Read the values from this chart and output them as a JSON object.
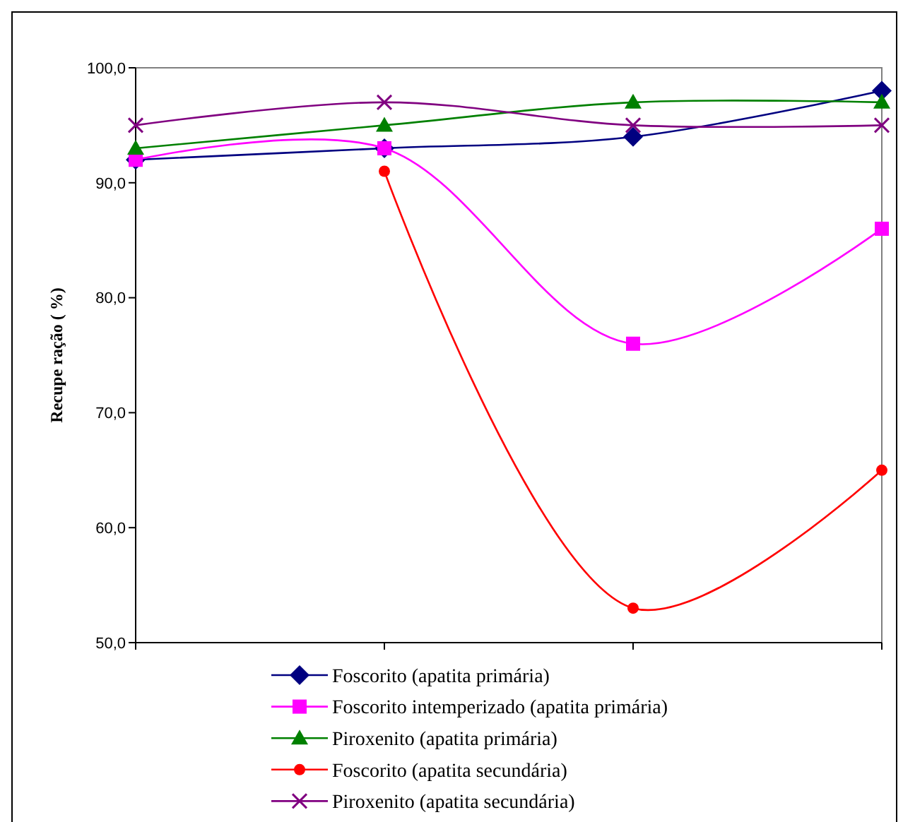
{
  "chart_data": {
    "type": "line",
    "ylabel": "Recupe ração ( %)",
    "categories": [
      null,
      null,
      null,
      null
    ],
    "ylim": [
      50,
      100
    ],
    "yticks": [
      {
        "value": 50,
        "label": "50,0"
      },
      {
        "value": 60,
        "label": "60,0"
      },
      {
        "value": 70,
        "label": "70,0"
      },
      {
        "value": 80,
        "label": "80,0"
      },
      {
        "value": 90,
        "label": "90,0"
      },
      {
        "value": 100,
        "label": "100,0"
      }
    ],
    "grid": false,
    "legend": "bottom",
    "series": [
      {
        "name": "Foscorito (apatita primária)",
        "color": "#000080",
        "marker": "diamond",
        "values": [
          92,
          93,
          94,
          98
        ]
      },
      {
        "name": "Foscorito intemperizado (apatita primária)",
        "color": "#ff00ff",
        "marker": "square",
        "values": [
          92,
          93,
          76,
          86
        ]
      },
      {
        "name": "Piroxenito (apatita primária)",
        "color": "#008000",
        "marker": "triangle",
        "values": [
          93,
          95,
          97,
          97
        ]
      },
      {
        "name": "Foscorito (apatita secundária)",
        "color": "#ff0000",
        "marker": "circle",
        "values": [
          null,
          91,
          53,
          65
        ]
      },
      {
        "name": "Piroxenito (apatita secundária)",
        "color": "#800080",
        "marker": "cross",
        "values": [
          95,
          97,
          95,
          95
        ]
      }
    ]
  }
}
